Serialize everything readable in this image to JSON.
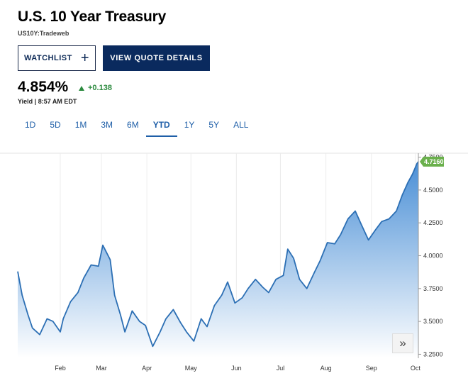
{
  "header": {
    "title": "U.S. 10 Year Treasury",
    "subtitle": "US10Y:Tradeweb"
  },
  "actions": {
    "watchlist_label": "WATCHLIST",
    "watchlist_icon": "plus-icon",
    "quote_label": "VIEW QUOTE DETAILS"
  },
  "quote": {
    "price": "4.854%",
    "change": "+0.138",
    "change_color": "#2b8a3e",
    "meta": "Yield | 8:57 AM EDT"
  },
  "ranges": [
    "1D",
    "5D",
    "1M",
    "3M",
    "6M",
    "YTD",
    "1Y",
    "5Y",
    "ALL"
  ],
  "active_range": "YTD",
  "chart_nav": {
    "icon": "chevron-double-right-icon",
    "glyph": "»"
  },
  "chart_data": {
    "type": "area",
    "line_color": "#2c6fb4",
    "fill_top": "#4a8fd6",
    "last_value_label": "4.7160",
    "last_value_color": "#6ab04c",
    "x_labels": [
      "Feb",
      "Mar",
      "Apr",
      "May",
      "Jun",
      "Jul",
      "Aug",
      "Sep",
      "Oct"
    ],
    "y_ticks": [
      "3.2500",
      "3.5000",
      "3.7500",
      "4.0000",
      "4.2500",
      "4.5000",
      "4.7500"
    ],
    "ylim": [
      3.22,
      4.78
    ],
    "grid": "vertical",
    "x_range": [
      "2023-01-03",
      "2023-10-03"
    ],
    "x": [
      "2023-01-03",
      "2023-01-06",
      "2023-01-10",
      "2023-01-13",
      "2023-01-18",
      "2023-01-23",
      "2023-01-27",
      "2023-02-01",
      "2023-02-03",
      "2023-02-08",
      "2023-02-13",
      "2023-02-17",
      "2023-02-22",
      "2023-02-27",
      "2023-03-02",
      "2023-03-07",
      "2023-03-10",
      "2023-03-14",
      "2023-03-17",
      "2023-03-22",
      "2023-03-27",
      "2023-03-31",
      "2023-04-05",
      "2023-04-10",
      "2023-04-14",
      "2023-04-19",
      "2023-04-24",
      "2023-04-28",
      "2023-05-03",
      "2023-05-08",
      "2023-05-12",
      "2023-05-17",
      "2023-05-22",
      "2023-05-26",
      "2023-05-31",
      "2023-06-05",
      "2023-06-09",
      "2023-06-14",
      "2023-06-19",
      "2023-06-23",
      "2023-06-28",
      "2023-07-03",
      "2023-07-06",
      "2023-07-10",
      "2023-07-14",
      "2023-07-19",
      "2023-07-24",
      "2023-07-28",
      "2023-08-02",
      "2023-08-07",
      "2023-08-11",
      "2023-08-16",
      "2023-08-21",
      "2023-08-25",
      "2023-08-30",
      "2023-09-04",
      "2023-09-08",
      "2023-09-13",
      "2023-09-18",
      "2023-09-22",
      "2023-09-26",
      "2023-09-29",
      "2023-10-02",
      "2023-10-03"
    ],
    "values": [
      3.88,
      3.7,
      3.55,
      3.45,
      3.4,
      3.52,
      3.5,
      3.42,
      3.52,
      3.65,
      3.72,
      3.83,
      3.93,
      3.92,
      4.08,
      3.97,
      3.7,
      3.55,
      3.42,
      3.58,
      3.5,
      3.47,
      3.31,
      3.42,
      3.52,
      3.59,
      3.49,
      3.42,
      3.35,
      3.52,
      3.46,
      3.62,
      3.7,
      3.8,
      3.64,
      3.68,
      3.75,
      3.82,
      3.76,
      3.72,
      3.82,
      3.85,
      4.05,
      3.98,
      3.82,
      3.75,
      3.87,
      3.96,
      4.1,
      4.09,
      4.16,
      4.28,
      4.34,
      4.24,
      4.12,
      4.2,
      4.26,
      4.28,
      4.34,
      4.46,
      4.56,
      4.62,
      4.7,
      4.716
    ]
  }
}
